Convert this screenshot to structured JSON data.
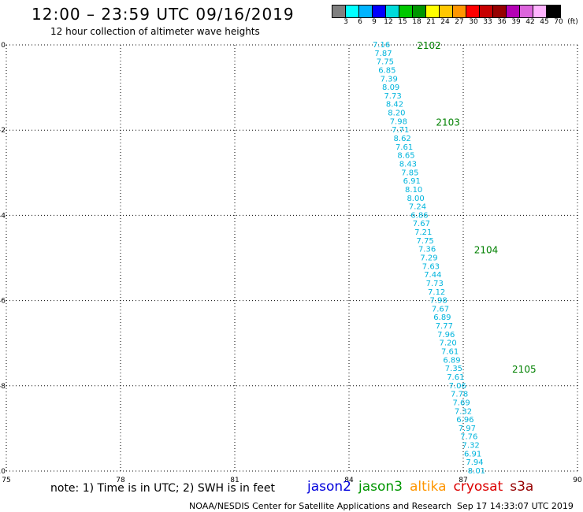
{
  "header": {
    "title": "12:00 – 23:59 UTC 09/16/2019",
    "subtitle": "12 hour collection of altimeter wave heights"
  },
  "legend": {
    "colors": [
      "#808080",
      "#00ffff",
      "#00b4ff",
      "#0000ff",
      "#00dcdc",
      "#00c800",
      "#009600",
      "#ffff00",
      "#ffc800",
      "#ff9600",
      "#ff0000",
      "#c80000",
      "#960000",
      "#b400b4",
      "#dc64dc",
      "#ffb4ff",
      "#000000"
    ],
    "labels": [
      "3",
      "6",
      "9",
      "12",
      "15",
      "18",
      "21",
      "24",
      "27",
      "30",
      "33",
      "36",
      "39",
      "42",
      "45",
      "70",
      "(ft)"
    ]
  },
  "note": "note: 1) Time is in UTC; 2) SWH is in feet",
  "missions": [
    {
      "name": "jason2",
      "color": "#0000dc"
    },
    {
      "name": "jason3",
      "color": "#009600"
    },
    {
      "name": "altika",
      "color": "#ff9600"
    },
    {
      "name": "cryosat",
      "color": "#dc0000"
    },
    {
      "name": "s3a",
      "color": "#960000"
    }
  ],
  "credit": "NOAA/NESDIS Center for Satellite Applications and Research",
  "timestamp": "Sep 17 14:33:07 UTC 2019",
  "map": {
    "lon_range": [
      75,
      90
    ],
    "lat_range": [
      -10,
      0
    ],
    "x_ticks": [
      "75",
      "78",
      "81",
      "84",
      "87",
      "90"
    ],
    "y_ticks": [
      "0",
      "-2",
      "-4",
      "-6",
      "-8",
      "-10"
    ],
    "track_color": "#00b4dc",
    "time_color": "#008000",
    "track": [
      {
        "lon": 84.85,
        "lat": 0.0,
        "swh": "7.16"
      },
      {
        "lon": 84.9,
        "lat": -0.2,
        "swh": "7.87"
      },
      {
        "lon": 84.95,
        "lat": -0.4,
        "swh": "7.75"
      },
      {
        "lon": 85.0,
        "lat": -0.6,
        "swh": "6.85"
      },
      {
        "lon": 85.05,
        "lat": -0.8,
        "swh": "7.39"
      },
      {
        "lon": 85.1,
        "lat": -1.0,
        "swh": "8.09"
      },
      {
        "lon": 85.15,
        "lat": -1.2,
        "swh": "7.73"
      },
      {
        "lon": 85.2,
        "lat": -1.4,
        "swh": "8.42"
      },
      {
        "lon": 85.25,
        "lat": -1.6,
        "swh": "8.20"
      },
      {
        "lon": 85.3,
        "lat": -1.8,
        "swh": "7.98"
      },
      {
        "lon": 85.35,
        "lat": -2.0,
        "swh": "7.71"
      },
      {
        "lon": 85.4,
        "lat": -2.2,
        "swh": "8.62"
      },
      {
        "lon": 85.45,
        "lat": -2.4,
        "swh": "7.61"
      },
      {
        "lon": 85.5,
        "lat": -2.6,
        "swh": "8.65"
      },
      {
        "lon": 85.55,
        "lat": -2.8,
        "swh": "8.43"
      },
      {
        "lon": 85.6,
        "lat": -3.0,
        "swh": "7.85"
      },
      {
        "lon": 85.65,
        "lat": -3.2,
        "swh": "6.91"
      },
      {
        "lon": 85.7,
        "lat": -3.4,
        "swh": "8.10"
      },
      {
        "lon": 85.75,
        "lat": -3.6,
        "swh": "8.00"
      },
      {
        "lon": 85.8,
        "lat": -3.8,
        "swh": "7.24"
      },
      {
        "lon": 85.85,
        "lat": -4.0,
        "swh": "6.86"
      },
      {
        "lon": 85.9,
        "lat": -4.2,
        "swh": "7.67"
      },
      {
        "lon": 85.95,
        "lat": -4.4,
        "swh": "7.21"
      },
      {
        "lon": 86.0,
        "lat": -4.6,
        "swh": "7.75"
      },
      {
        "lon": 86.05,
        "lat": -4.8,
        "swh": "7.36"
      },
      {
        "lon": 86.1,
        "lat": -5.0,
        "swh": "7.29"
      },
      {
        "lon": 86.15,
        "lat": -5.2,
        "swh": "7.63"
      },
      {
        "lon": 86.2,
        "lat": -5.4,
        "swh": "7.44"
      },
      {
        "lon": 86.25,
        "lat": -5.6,
        "swh": "7.73"
      },
      {
        "lon": 86.3,
        "lat": -5.8,
        "swh": "7.12"
      },
      {
        "lon": 86.35,
        "lat": -6.0,
        "swh": "7.98"
      },
      {
        "lon": 86.4,
        "lat": -6.2,
        "swh": "7.67"
      },
      {
        "lon": 86.45,
        "lat": -6.4,
        "swh": "6.89"
      },
      {
        "lon": 86.5,
        "lat": -6.6,
        "swh": "7.77"
      },
      {
        "lon": 86.55,
        "lat": -6.8,
        "swh": "7.96"
      },
      {
        "lon": 86.6,
        "lat": -7.0,
        "swh": "7.20"
      },
      {
        "lon": 86.65,
        "lat": -7.2,
        "swh": "7.61"
      },
      {
        "lon": 86.7,
        "lat": -7.4,
        "swh": "6.89"
      },
      {
        "lon": 86.75,
        "lat": -7.6,
        "swh": "7.35"
      },
      {
        "lon": 86.8,
        "lat": -7.8,
        "swh": "7.61"
      },
      {
        "lon": 86.85,
        "lat": -8.0,
        "swh": "7.06"
      },
      {
        "lon": 86.9,
        "lat": -8.2,
        "swh": "7.78"
      },
      {
        "lon": 86.95,
        "lat": -8.4,
        "swh": "7.69"
      },
      {
        "lon": 87.0,
        "lat": -8.6,
        "swh": "7.32"
      },
      {
        "lon": 87.05,
        "lat": -8.8,
        "swh": "6.96"
      },
      {
        "lon": 87.1,
        "lat": -9.0,
        "swh": "7.97"
      },
      {
        "lon": 87.15,
        "lat": -9.2,
        "swh": "7.76"
      },
      {
        "lon": 87.2,
        "lat": -9.4,
        "swh": "7.32"
      },
      {
        "lon": 87.25,
        "lat": -9.6,
        "swh": "6.91"
      },
      {
        "lon": 87.3,
        "lat": -9.8,
        "swh": "7.94"
      },
      {
        "lon": 87.35,
        "lat": -10.0,
        "swh": "8.01"
      }
    ],
    "time_marks": [
      {
        "lon": 86.1,
        "lat": 0.0,
        "label": "2102"
      },
      {
        "lon": 86.6,
        "lat": -1.8,
        "label": "2103"
      },
      {
        "lon": 87.6,
        "lat": -4.8,
        "label": "2104"
      },
      {
        "lon": 88.6,
        "lat": -7.6,
        "label": "2105"
      }
    ]
  }
}
